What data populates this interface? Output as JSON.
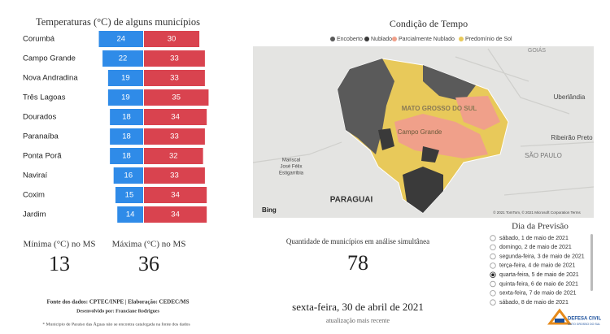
{
  "temperature_panel": {
    "title": "Temperaturas (°C) de alguns municípios",
    "categories": [
      "Corumbá",
      "Campo Grande",
      "Nova Andradina",
      "Três Lagoas",
      "Dourados",
      "Paranaíba",
      "Ponta Porã",
      "Naviraí",
      "Coxim",
      "Jardim"
    ],
    "min_values": [
      24,
      22,
      19,
      19,
      18,
      18,
      18,
      16,
      15,
      14
    ],
    "max_values": [
      30,
      33,
      33,
      35,
      34,
      33,
      32,
      33,
      34,
      34
    ],
    "min_color": "#2f8be8",
    "max_color": "#d9434f"
  },
  "min_card": {
    "label": "Mínima (°C) no MS",
    "value": 13
  },
  "max_card": {
    "label": "Máxima (°C) no MS",
    "value": 36
  },
  "footer": {
    "source": "Fonte dos dados: CPTEC/INPE | Elaboração: CEDEC/MS",
    "developer": "Desenvolvido por: Franciane Rodrigues",
    "note": "* Município de Paraíso das Águas não se encontra catalogada na fonte dos dados"
  },
  "map_panel": {
    "title": "Condição de Tempo",
    "legend": [
      {
        "name": "Encoberto",
        "color": "#5a5a5a"
      },
      {
        "name": "Nublado",
        "color": "#3a3a3a"
      },
      {
        "name": "Parcialmente Nublado",
        "color": "#f0a08a"
      },
      {
        "name": "Predomínio de Sol",
        "color": "#e8c95a"
      }
    ],
    "labels": [
      "MATO GROSSO DO SUL",
      "Campo Grande",
      "PARAGUAI",
      "Uberlândia",
      "GOIÁS",
      "Ribeirão Preto",
      "SÃO PAULO",
      "Mariscal",
      "José Félix",
      "Estigarribia",
      "Bing",
      "© 2021 TomTom, © 2021 Microsoft Corporation  Terms"
    ]
  },
  "count_card": {
    "label": "Quantidade de municípios em análise simultânea",
    "value": 78
  },
  "update": {
    "date": "sexta-feira, 30 de abril de 2021",
    "caption": "atualização mais recente"
  },
  "forecast": {
    "title": "Dia da Previsão",
    "options": [
      "sábado, 1 de maio de 2021",
      "domingo, 2 de maio de 2021",
      "segunda-feira, 3 de maio de 2021",
      "terça-feira, 4 de maio de 2021",
      "quarta-feira, 5 de maio de 2021",
      "quinta-feira, 6 de maio de 2021",
      "sexta-feira, 7 de maio de 2021",
      "sábado, 8 de maio de 2021"
    ],
    "selected": 4
  },
  "logo": {
    "title": "DEFESA CIVIL",
    "subtitle": "MATO GROSSO DO SUL"
  }
}
